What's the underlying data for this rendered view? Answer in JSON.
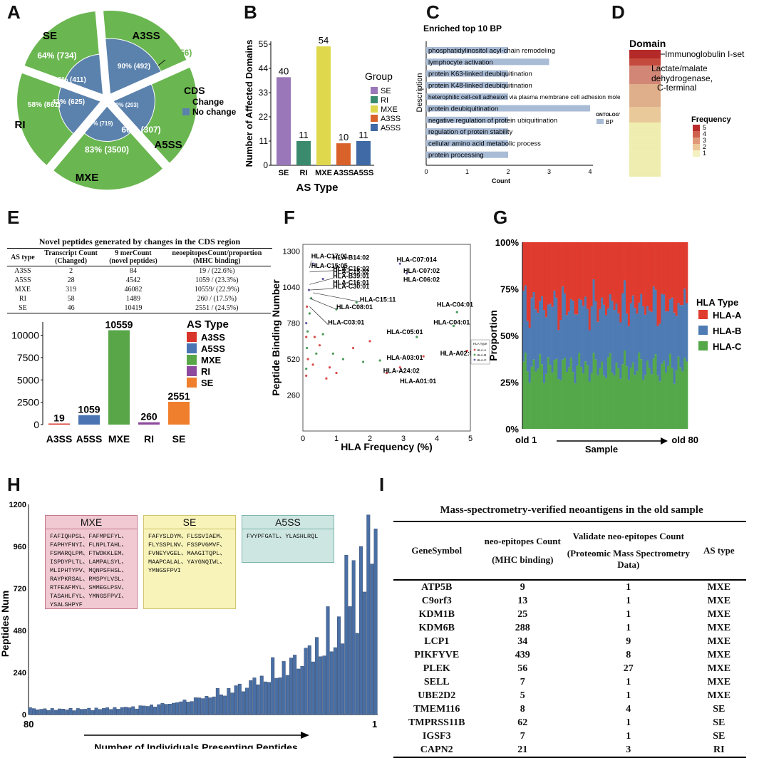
{
  "panels": {
    "A": "A",
    "B": "B",
    "C": "C",
    "D": "D",
    "E": "E",
    "F": "F",
    "G": "G",
    "H": "H",
    "I": "I"
  },
  "chart_data": [
    {
      "id": "A",
      "type": "pie",
      "legend_title": "CDS",
      "legend": [
        {
          "label": "Change",
          "color": "#6ab650"
        },
        {
          "label": "No change",
          "color": "#5b82ad"
        }
      ],
      "slices": [
        {
          "name": "A3SS",
          "outer": "10% (56)",
          "inner": "90% (492)"
        },
        {
          "name": "A5SS",
          "outer": "60% (307)",
          "inner": "40% (203)"
        },
        {
          "name": "MXE",
          "outer": "83% (3500)",
          "inner": "17% (719)"
        },
        {
          "name": "RI",
          "outer": "58% (861)",
          "inner": "42% (625)"
        },
        {
          "name": "SE",
          "outer": "64% (734)",
          "inner": "36% (411)"
        }
      ]
    },
    {
      "id": "B",
      "type": "bar",
      "ylabel": "Number of Affected Domains",
      "xlabel": "AS Type",
      "ylim": [
        0,
        55
      ],
      "yticks": [
        "0",
        "11",
        "22",
        "33",
        "44",
        "55"
      ],
      "categories": [
        "SE",
        "RI",
        "MXE",
        "A3SS",
        "A5SS"
      ],
      "values": [
        40,
        11,
        54,
        10,
        11
      ],
      "colors": [
        "#9a77b8",
        "#3a8b6e",
        "#e0d84c",
        "#d9622b",
        "#3f6aa6"
      ],
      "legend_title": "Group"
    },
    {
      "id": "C",
      "type": "bar",
      "title": "Enriched top 10 BP",
      "ylabel": "Description",
      "xlabel": "Count",
      "xticks": [
        "0",
        "1",
        "2",
        "3",
        "4"
      ],
      "legend_title": "ONTOLOGY",
      "legend_item": "BP",
      "terms": [
        "phosphatidylinositol acyl-chain remodeling",
        "lymphocyte activation",
        "protein K63-linked deubiquitination",
        "protein K48-linked deubiquitination",
        "heterophilic cell-cell adhesion via plasma membrane cell adhesion molecule",
        "protein deubiquitination",
        "negative regulation of protein ubiquitination",
        "regulation of protein stability",
        "cellular amino acid metabolic process",
        "protein processing"
      ],
      "values": [
        2,
        3,
        2,
        2,
        2,
        4,
        2,
        2,
        2,
        2
      ]
    },
    {
      "id": "D",
      "type": "heatmap",
      "title": "Domain",
      "labels": [
        "Immunoglobulin I-set",
        "Lactate/malate dehydrogenase, C-terminal"
      ],
      "legend_title": "Frequency",
      "legend_ticks": [
        "5",
        "4",
        "3",
        "2",
        "1"
      ]
    },
    {
      "id": "E",
      "type": "bar",
      "legend_title": "AS Type",
      "categories": [
        "A3SS",
        "A5SS",
        "MXE",
        "RI",
        "SE"
      ],
      "values": [
        19,
        1059,
        10559,
        260,
        2551
      ],
      "value_labels": [
        "19",
        "1059",
        "10559",
        "260",
        "2551"
      ],
      "legend_order": [
        "A3SS",
        "A5SS",
        "MXE",
        "RI",
        "SE"
      ],
      "colors": {
        "A3SS": "#d9342b",
        "A5SS": "#4b74b3",
        "MXE": "#58a648",
        "RI": "#8e4a9e",
        "SE": "#f07f2d"
      },
      "yticks": [
        "0",
        "2500",
        "5000",
        "7500",
        "10000"
      ],
      "ylim": [
        0,
        11000
      ]
    },
    {
      "id": "F",
      "type": "scatter",
      "xlabel": "HLA Frequency (%)",
      "ylabel": "Peptide Binding Number",
      "xticks": [
        "0",
        "1",
        "2",
        "3",
        "4",
        "5"
      ],
      "yticks": [
        "260",
        "520",
        "780",
        "1040",
        "1300"
      ],
      "xlim": [
        0,
        5
      ],
      "ylim": [
        0,
        1350
      ],
      "legend_title": "HLA Type",
      "legend": [
        "HLA-A",
        "HLA-B",
        "HLA-C"
      ],
      "labels": [
        {
          "t": "HLA-C17:01",
          "x": 0.25,
          "y": 1250
        },
        {
          "t": "HLA-C15:05",
          "x": 0.25,
          "y": 1180
        },
        {
          "t": "HLA-B14:02",
          "x": 0.9,
          "y": 1240
        },
        {
          "t": "HLA-C07:014",
          "x": 2.8,
          "y": 1225
        },
        {
          "t": "HLA-C16:02",
          "x": 0.9,
          "y": 1160
        },
        {
          "t": "HLA-C15:02",
          "x": 0.9,
          "y": 1135
        },
        {
          "t": "HLA-C07:02",
          "x": 3.0,
          "y": 1145
        },
        {
          "t": "HLA-B39:01",
          "x": 0.9,
          "y": 1105
        },
        {
          "t": "HLA-C06:02",
          "x": 3.0,
          "y": 1080
        },
        {
          "t": "HLA-C16:01",
          "x": 0.9,
          "y": 1060
        },
        {
          "t": "HLA-C30:01",
          "x": 0.9,
          "y": 1030
        },
        {
          "t": "HLA-C15:11",
          "x": 1.7,
          "y": 935
        },
        {
          "t": "HLA-C08:01",
          "x": 1.0,
          "y": 880
        },
        {
          "t": "HLA-C04:01",
          "x": 4.0,
          "y": 900
        },
        {
          "t": "HLA-C03:01",
          "x": 0.75,
          "y": 770
        },
        {
          "t": "HLA-C04:01",
          "x": 3.9,
          "y": 770
        },
        {
          "t": "HLA-C05:01",
          "x": 2.5,
          "y": 700
        },
        {
          "t": "HLA-A02:01",
          "x": 4.1,
          "y": 545
        },
        {
          "t": "HLA-A03:01",
          "x": 2.5,
          "y": 515
        },
        {
          "t": "HLA-A24:02",
          "x": 2.4,
          "y": 420
        },
        {
          "t": "HLA-A01:01",
          "x": 2.9,
          "y": 345
        }
      ]
    },
    {
      "id": "G",
      "type": "bar",
      "stacked": true,
      "ylabel": "Proportion",
      "xlabel": "Sample",
      "x_start": "old 1",
      "x_end": "old 80",
      "yticks": [
        "0%",
        "25%",
        "50%",
        "75%",
        "100%"
      ],
      "legend_title": "HLA Type",
      "series": [
        {
          "name": "HLA-A",
          "color": "#e03b2f",
          "approx": 0.28
        },
        {
          "name": "HLA-B",
          "color": "#4e7bb4",
          "approx": 0.33
        },
        {
          "name": "HLA-C",
          "color": "#54a84a",
          "approx": 0.39
        }
      ]
    },
    {
      "id": "H",
      "type": "bar",
      "ylabel": "Peptides Num",
      "xlabel": "Number of Individuals Presenting Peptides",
      "x_start": "80",
      "x_end": "1",
      "yticks": [
        "0",
        "240",
        "480",
        "720",
        "960",
        "1200"
      ],
      "ylim": [
        0,
        1200
      ],
      "boxes": [
        {
          "title": "MXE",
          "body": "FAFIQHPSL、FAFMPEFYL、\nFAPHYFNYI、FLNPLTAHL、\nFSMARQLPM、FTWDKKLEM、\nISPDYPLTL、LAMPALSYL、\nMLIPHTYPV、MQNPSFHSL、\nRAYPKRSAL、RMSPYLVSL、\nRTFEAFMYL、SMMEGLPSV、\nTASAHLFYL、YMNGSFPVI、\nYSALSHPYF"
        },
        {
          "title": "SE",
          "body": "FAFYSLDYM、FLSSVIAEM、\nFLYSSPLNV、FSSPVGMVF、\nFVNEYVGEL、MAAGITQPL、\nMAAPCALAL、YAYGNQIWL、\nYMNGSFPVI"
        },
        {
          "title": "A5SS",
          "body": "FVYPFGATL、YLASHLRQL"
        }
      ]
    }
  ],
  "tableE": {
    "title": "Novel peptides generated by changes in the CDS region",
    "headers": [
      "AS type",
      "Transcript Count\n(Changed)",
      "9 merCount\n(novel peptides)",
      "neoepitopesCount/proportion\n(MHC binding)"
    ],
    "rows": [
      [
        "A3SS",
        "2",
        "84",
        "19 / (22.6%)"
      ],
      [
        "A5SS",
        "28",
        "4542",
        "1059 / (23.3%)"
      ],
      [
        "MXE",
        "319",
        "46082",
        "10559/ (22.9%)"
      ],
      [
        "RI",
        "58",
        "1489",
        "260 / (17.5%)"
      ],
      [
        "SE",
        "46",
        "10419",
        "2551 / (24.5%)"
      ]
    ]
  },
  "tableI": {
    "title": "Mass-spectrometry-verified neoantigens in the old sample",
    "h1": "GeneSymbol",
    "h2a": "neo-epitopes Count",
    "h2b": "(MHC binding)",
    "h3a": "Validate  neo-epitopes Count",
    "h3b": "Proteomic Mass Spectrometry Data",
    "h4": "AS type",
    "rows": [
      [
        "ATP5B",
        "9",
        "1",
        "MXE"
      ],
      [
        "C9orf3",
        "13",
        "1",
        "MXE"
      ],
      [
        "KDM1B",
        "25",
        "1",
        "MXE"
      ],
      [
        "KDM6B",
        "288",
        "1",
        "MXE"
      ],
      [
        "LCP1",
        "34",
        "9",
        "MXE"
      ],
      [
        "PIKFYVE",
        "439",
        "8",
        "MXE"
      ],
      [
        "PLEK",
        "56",
        "27",
        "MXE"
      ],
      [
        "SELL",
        "7",
        "1",
        "MXE"
      ],
      [
        "UBE2D2",
        "5",
        "1",
        "MXE"
      ],
      [
        "TMEM116",
        "8",
        "4",
        "SE"
      ],
      [
        "TMPRSS11B",
        "62",
        "1",
        "SE"
      ],
      [
        "IGSF3",
        "7",
        "1",
        "SE"
      ],
      [
        "CAPN2",
        "21",
        "3",
        "RI"
      ]
    ]
  }
}
